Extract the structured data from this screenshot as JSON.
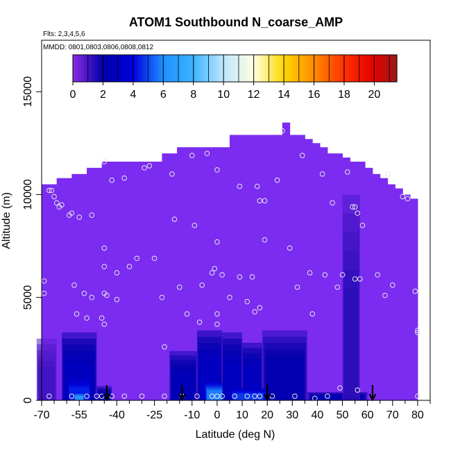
{
  "chart_data": {
    "type": "heatmap",
    "title": "ATOM1 Southbound N_coarse_AMP",
    "subtitle_flights": "Flts: 2,3,4,5,6",
    "subtitle_dates": "MMDD: 0801,0803,0806,0808,0812",
    "xlabel": "Latitude (deg N)",
    "ylabel": "Altitude (m)",
    "xlim": [
      -70,
      85
    ],
    "ylim": [
      0,
      17500
    ],
    "x_ticks": [
      {
        "value": -70,
        "label": "-70"
      },
      {
        "value": -55,
        "label": "-55"
      },
      {
        "value": -40,
        "label": "-40"
      },
      {
        "value": -25,
        "label": "-25"
      },
      {
        "value": -10,
        "label": "-10"
      },
      {
        "value": 0,
        "label": "0"
      },
      {
        "value": 10,
        "label": "10"
      },
      {
        "value": 20,
        "label": "20"
      },
      {
        "value": 30,
        "label": "30"
      },
      {
        "value": 40,
        "label": "40"
      },
      {
        "value": 50,
        "label": "50"
      },
      {
        "value": 60,
        "label": "60"
      },
      {
        "value": 70,
        "label": "70"
      },
      {
        "value": 80,
        "label": "80"
      }
    ],
    "x_minor_ticks": [
      -65,
      -60,
      -50,
      -45,
      -35,
      -30,
      -20,
      -15,
      -5,
      5,
      15,
      25,
      35,
      45,
      55,
      65,
      75,
      85
    ],
    "y_ticks": [
      {
        "value": 0,
        "label": "0"
      },
      {
        "value": 5000,
        "label": "5000"
      },
      {
        "value": 10000,
        "label": "10000"
      },
      {
        "value": 15000,
        "label": "15000"
      }
    ],
    "colorbar": {
      "range": [
        0,
        21.5
      ],
      "ticks": [
        {
          "value": 0,
          "label": "0"
        },
        {
          "value": 2,
          "label": "2"
        },
        {
          "value": 4,
          "label": "4"
        },
        {
          "value": 6,
          "label": "6"
        },
        {
          "value": 8,
          "label": "8"
        },
        {
          "value": 10,
          "label": "10"
        },
        {
          "value": 12,
          "label": "12"
        },
        {
          "value": 14,
          "label": "14"
        },
        {
          "value": 16,
          "label": "16"
        },
        {
          "value": 18,
          "label": "18"
        },
        {
          "value": 20,
          "label": "20"
        }
      ],
      "stops": [
        {
          "value": 0,
          "color": "#8a2be2"
        },
        {
          "value": 2,
          "color": "#0000a8"
        },
        {
          "value": 4,
          "color": "#0000e0"
        },
        {
          "value": 6,
          "color": "#1e90ff"
        },
        {
          "value": 8,
          "color": "#3cb4ff"
        },
        {
          "value": 10,
          "color": "#bfe6ff"
        },
        {
          "value": 12,
          "color": "#ffffe0"
        },
        {
          "value": 14,
          "color": "#ffd700"
        },
        {
          "value": 16,
          "color": "#ff8c00"
        },
        {
          "value": 18,
          "color": "#ff3000"
        },
        {
          "value": 20,
          "color": "#e00000"
        },
        {
          "value": 21.5,
          "color": "#9a1a1a"
        }
      ]
    },
    "field_colors": {
      "low": "#7b2cf0",
      "mid": "#1410d0",
      "deep": "#00008f",
      "high": "#3ca8ff"
    },
    "columns": [
      {
        "lat": -70,
        "top": 10500
      },
      {
        "lat": -67,
        "top": 10500
      },
      {
        "lat": -64,
        "top": 10800
      },
      {
        "lat": -61,
        "top": 10800
      },
      {
        "lat": -58,
        "top": 11000
      },
      {
        "lat": -55,
        "top": 11000
      },
      {
        "lat": -52,
        "top": 11300
      },
      {
        "lat": -49,
        "top": 11300
      },
      {
        "lat": -46,
        "top": 11600
      },
      {
        "lat": -43,
        "top": 11600
      },
      {
        "lat": -40,
        "top": 11600
      },
      {
        "lat": -37,
        "top": 11600
      },
      {
        "lat": -34,
        "top": 11600
      },
      {
        "lat": -31,
        "top": 11600
      },
      {
        "lat": -28,
        "top": 11600
      },
      {
        "lat": -25,
        "top": 11600
      },
      {
        "lat": -22,
        "top": 12000
      },
      {
        "lat": -19,
        "top": 12000
      },
      {
        "lat": -16,
        "top": 12300
      },
      {
        "lat": -13,
        "top": 12300
      },
      {
        "lat": -10,
        "top": 12300
      },
      {
        "lat": -7,
        "top": 12300
      },
      {
        "lat": -4,
        "top": 12300
      },
      {
        "lat": -1,
        "top": 12300
      },
      {
        "lat": 2,
        "top": 12300
      },
      {
        "lat": 5,
        "top": 12900
      },
      {
        "lat": 8,
        "top": 12900
      },
      {
        "lat": 11,
        "top": 12900
      },
      {
        "lat": 14,
        "top": 12900
      },
      {
        "lat": 17,
        "top": 12900
      },
      {
        "lat": 20,
        "top": 12900
      },
      {
        "lat": 23,
        "top": 12900
      },
      {
        "lat": 26,
        "top": 13500
      },
      {
        "lat": 29,
        "top": 12900
      },
      {
        "lat": 32,
        "top": 12900
      },
      {
        "lat": 35,
        "top": 12700
      },
      {
        "lat": 38,
        "top": 12500
      },
      {
        "lat": 41,
        "top": 12300
      },
      {
        "lat": 44,
        "top": 12000
      },
      {
        "lat": 47,
        "top": 12000
      },
      {
        "lat": 50,
        "top": 11800
      },
      {
        "lat": 53,
        "top": 11600
      },
      {
        "lat": 56,
        "top": 11600
      },
      {
        "lat": 59,
        "top": 11300
      },
      {
        "lat": 62,
        "top": 11000
      },
      {
        "lat": 65,
        "top": 10800
      },
      {
        "lat": 68,
        "top": 10500
      },
      {
        "lat": 71,
        "top": 10300
      },
      {
        "lat": 74,
        "top": 10000
      },
      {
        "lat": 77,
        "top": 9800
      }
    ],
    "column_width": 3,
    "plumes": [
      {
        "lat_from": -62,
        "lat_to": -48,
        "alt_top": 3300,
        "value": 3.2
      },
      {
        "lat_from": -60,
        "lat_to": -50,
        "alt_top": 1200,
        "value": 5.0
      },
      {
        "lat_from": -57,
        "lat_to": -53,
        "alt_top": 400,
        "value": 7.5
      },
      {
        "lat_from": -48,
        "lat_to": -42,
        "alt_top": 700,
        "value": 2.5
      },
      {
        "lat_from": -19,
        "lat_to": -8,
        "alt_top": 2400,
        "value": 3.0
      },
      {
        "lat_from": -8,
        "lat_to": 2,
        "alt_top": 3400,
        "value": 3.4
      },
      {
        "lat_from": -5,
        "lat_to": 5,
        "alt_top": 900,
        "value": 6.8
      },
      {
        "lat_from": 2,
        "lat_to": 10,
        "alt_top": 3300,
        "value": 3.2
      },
      {
        "lat_from": 10,
        "lat_to": 18,
        "alt_top": 2800,
        "value": 3.3
      },
      {
        "lat_from": 18,
        "lat_to": 36,
        "alt_top": 3400,
        "value": 2.6
      },
      {
        "lat_from": 5,
        "lat_to": 20,
        "alt_top": 600,
        "value": 5.5
      },
      {
        "lat_from": 36,
        "lat_to": 60,
        "alt_top": 400,
        "value": 2.8
      },
      {
        "lat_from": 50,
        "lat_to": 57,
        "alt_top": 10000,
        "value": 1.6
      },
      {
        "lat_from": -72,
        "lat_to": -64,
        "alt_top": 3000,
        "value": 1.2
      }
    ],
    "observations": [
      {
        "lat": -67,
        "alt": 10200
      },
      {
        "lat": -66,
        "alt": 10200
      },
      {
        "lat": -65,
        "alt": 9900
      },
      {
        "lat": -64,
        "alt": 9600
      },
      {
        "lat": -63,
        "alt": 9400
      },
      {
        "lat": -62,
        "alt": 9500
      },
      {
        "lat": -59,
        "alt": 9000
      },
      {
        "lat": -58,
        "alt": 9100
      },
      {
        "lat": -55,
        "alt": 8900
      },
      {
        "lat": -50,
        "alt": 9000
      },
      {
        "lat": -45,
        "alt": 11600
      },
      {
        "lat": -42,
        "alt": 10700
      },
      {
        "lat": -37,
        "alt": 10800
      },
      {
        "lat": -29,
        "alt": 11300
      },
      {
        "lat": -27,
        "alt": 11400
      },
      {
        "lat": -18,
        "alt": 11000
      },
      {
        "lat": -10,
        "alt": 11900
      },
      {
        "lat": -4,
        "alt": 12000
      },
      {
        "lat": 0,
        "alt": 11200
      },
      {
        "lat": 9,
        "alt": 10400
      },
      {
        "lat": 16,
        "alt": 10400
      },
      {
        "lat": 17,
        "alt": 9700
      },
      {
        "lat": 19,
        "alt": 9700
      },
      {
        "lat": 24,
        "alt": 10700
      },
      {
        "lat": 26,
        "alt": 13100
      },
      {
        "lat": 34,
        "alt": 11900
      },
      {
        "lat": 42,
        "alt": 11000
      },
      {
        "lat": 52,
        "alt": 11100
      },
      {
        "lat": 46,
        "alt": 9600
      },
      {
        "lat": 54,
        "alt": 9400
      },
      {
        "lat": 55,
        "alt": 9400
      },
      {
        "lat": 56,
        "alt": 9100
      },
      {
        "lat": 58,
        "alt": 8500
      },
      {
        "lat": 68,
        "alt": 11000
      },
      {
        "lat": 74,
        "alt": 9900
      },
      {
        "lat": 76,
        "alt": 9800
      },
      {
        "lat": -17,
        "alt": 8800
      },
      {
        "lat": -9,
        "alt": 8500
      },
      {
        "lat": 0,
        "alt": 7700
      },
      {
        "lat": 19,
        "alt": 7800
      },
      {
        "lat": 29,
        "alt": 7400
      },
      {
        "lat": -45,
        "alt": 7400
      },
      {
        "lat": -32,
        "alt": 6900
      },
      {
        "lat": -25,
        "alt": 6900
      },
      {
        "lat": -35,
        "alt": 6500
      },
      {
        "lat": -45,
        "alt": 6500
      },
      {
        "lat": -40,
        "alt": 6200
      },
      {
        "lat": -2,
        "alt": 6200
      },
      {
        "lat": -1,
        "alt": 6400
      },
      {
        "lat": 2,
        "alt": 6100
      },
      {
        "lat": 9,
        "alt": 6000
      },
      {
        "lat": 14,
        "alt": 6000
      },
      {
        "lat": 37,
        "alt": 6200
      },
      {
        "lat": 43,
        "alt": 6100
      },
      {
        "lat": 50,
        "alt": 6100
      },
      {
        "lat": 55,
        "alt": 5900
      },
      {
        "lat": 57,
        "alt": 5900
      },
      {
        "lat": 64,
        "alt": 6100
      },
      {
        "lat": -57,
        "alt": 5600
      },
      {
        "lat": -69,
        "alt": 5800
      },
      {
        "lat": -69,
        "alt": 5200
      },
      {
        "lat": -53,
        "alt": 5200
      },
      {
        "lat": -50,
        "alt": 5000
      },
      {
        "lat": -45,
        "alt": 5200
      },
      {
        "lat": -44,
        "alt": 5100
      },
      {
        "lat": -40,
        "alt": 4900
      },
      {
        "lat": -22,
        "alt": 5000
      },
      {
        "lat": -15,
        "alt": 5500
      },
      {
        "lat": -6,
        "alt": 5600
      },
      {
        "lat": 5,
        "alt": 5000
      },
      {
        "lat": 12,
        "alt": 4800
      },
      {
        "lat": 17,
        "alt": 4500
      },
      {
        "lat": 15,
        "alt": 4300
      },
      {
        "lat": 32,
        "alt": 5500
      },
      {
        "lat": 48,
        "alt": 5500
      },
      {
        "lat": 67,
        "alt": 5100
      },
      {
        "lat": 70,
        "alt": 5600
      },
      {
        "lat": 79,
        "alt": 5300
      },
      {
        "lat": -56,
        "alt": 4200
      },
      {
        "lat": -52,
        "alt": 4000
      },
      {
        "lat": -46,
        "alt": 4000
      },
      {
        "lat": -45,
        "alt": 3700
      },
      {
        "lat": -12,
        "alt": 4200
      },
      {
        "lat": -7,
        "alt": 3800
      },
      {
        "lat": 0,
        "alt": 3700
      },
      {
        "lat": 0,
        "alt": 4200
      },
      {
        "lat": 38,
        "alt": 4200
      },
      {
        "lat": 80,
        "alt": 3400
      },
      {
        "lat": 80,
        "alt": 3300
      },
      {
        "lat": -21,
        "alt": 2600
      },
      {
        "lat": -67,
        "alt": 200
      },
      {
        "lat": -58,
        "alt": 200
      },
      {
        "lat": -52,
        "alt": 200
      },
      {
        "lat": -48,
        "alt": 200
      },
      {
        "lat": -46,
        "alt": 200
      },
      {
        "lat": -42,
        "alt": 200
      },
      {
        "lat": -37,
        "alt": 200
      },
      {
        "lat": -30,
        "alt": 200
      },
      {
        "lat": -21,
        "alt": 200
      },
      {
        "lat": -14,
        "alt": 200
      },
      {
        "lat": -8,
        "alt": 200
      },
      {
        "lat": -2,
        "alt": 200
      },
      {
        "lat": 0,
        "alt": 200
      },
      {
        "lat": 2,
        "alt": 200
      },
      {
        "lat": 7,
        "alt": 200
      },
      {
        "lat": 12,
        "alt": 200
      },
      {
        "lat": 15,
        "alt": 200
      },
      {
        "lat": 17,
        "alt": 200
      },
      {
        "lat": 22,
        "alt": 200
      },
      {
        "lat": 31,
        "alt": 200
      },
      {
        "lat": 39,
        "alt": 100
      },
      {
        "lat": 44,
        "alt": 200
      },
      {
        "lat": 49,
        "alt": 600
      },
      {
        "lat": 56,
        "alt": 500
      },
      {
        "lat": 80,
        "alt": 200
      }
    ],
    "arrows": [
      -44,
      -14,
      20,
      62
    ]
  }
}
